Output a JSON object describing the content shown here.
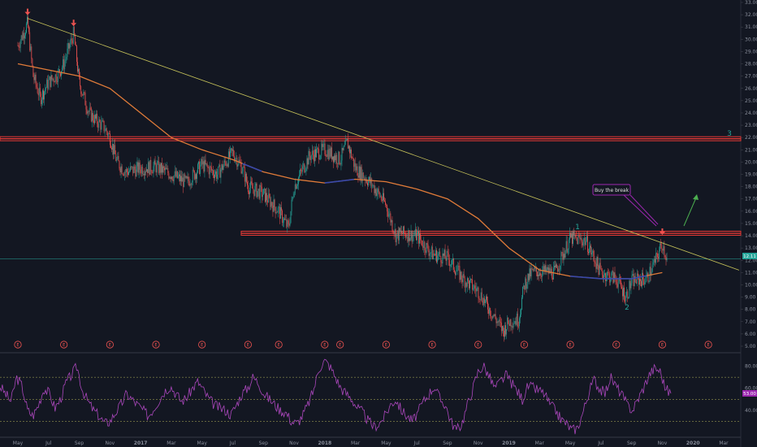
{
  "chart_data": [
    {
      "type": "candlestick",
      "title": "",
      "ylim": [
        5.0,
        33.0
      ],
      "y_ticks": [
        "33.00",
        "32.00",
        "31.00",
        "30.00",
        "29.00",
        "28.00",
        "27.00",
        "26.00",
        "25.00",
        "24.00",
        "23.00",
        "22.00",
        "21.00",
        "20.00",
        "19.00",
        "18.00",
        "17.00",
        "16.00",
        "15.00",
        "14.00",
        "13.00",
        "12.00",
        "11.00",
        "10.00",
        "9.00",
        "8.00",
        "7.00",
        "6.00",
        "5.00"
      ],
      "x_ticks": [
        "May",
        "Jul",
        "Sep",
        "Nov",
        "2017",
        "Mar",
        "May",
        "Jul",
        "Sep",
        "Nov",
        "2018",
        "Mar",
        "May",
        "Jul",
        "Sep",
        "Nov",
        "2019",
        "Mar",
        "May",
        "Jul",
        "Sep",
        "Nov",
        "2020",
        "Mar"
      ],
      "price_path": [
        {
          "date": "2016-05",
          "close": 29.5
        },
        {
          "date": "2016-05-20",
          "close": 31.3
        },
        {
          "date": "2016-06",
          "close": 27.0
        },
        {
          "date": "2016-06-15",
          "close": 25.2
        },
        {
          "date": "2016-07",
          "close": 26.5
        },
        {
          "date": "2016-07-20",
          "close": 27.2
        },
        {
          "date": "2016-08",
          "close": 28.0
        },
        {
          "date": "2016-08-20",
          "close": 30.5
        },
        {
          "date": "2016-09",
          "close": 26.5
        },
        {
          "date": "2016-09-20",
          "close": 24.0
        },
        {
          "date": "2016-10",
          "close": 23.5
        },
        {
          "date": "2016-10-20",
          "close": 22.8
        },
        {
          "date": "2016-11",
          "close": 22.0
        },
        {
          "date": "2016-11-15",
          "close": 20.0
        },
        {
          "date": "2016-12",
          "close": 19.2
        },
        {
          "date": "2017-01",
          "close": 19.5
        },
        {
          "date": "2017-02",
          "close": 19.6
        },
        {
          "date": "2017-03",
          "close": 19.0
        },
        {
          "date": "2017-04",
          "close": 18.3
        },
        {
          "date": "2017-05",
          "close": 19.8
        },
        {
          "date": "2017-06",
          "close": 19.0
        },
        {
          "date": "2017-07",
          "close": 20.8
        },
        {
          "date": "2017-07-20",
          "close": 19.5
        },
        {
          "date": "2017-08",
          "close": 18.0
        },
        {
          "date": "2017-09",
          "close": 17.4
        },
        {
          "date": "2017-10",
          "close": 16.0
        },
        {
          "date": "2017-10-20",
          "close": 14.6
        },
        {
          "date": "2017-11",
          "close": 18.0
        },
        {
          "date": "2017-12",
          "close": 20.5
        },
        {
          "date": "2018-01",
          "close": 21.0
        },
        {
          "date": "2018-02",
          "close": 20.2
        },
        {
          "date": "2018-02-15",
          "close": 21.6
        },
        {
          "date": "2018-03",
          "close": 19.5
        },
        {
          "date": "2018-04",
          "close": 18.3
        },
        {
          "date": "2018-05",
          "close": 16.5
        },
        {
          "date": "2018-05-20",
          "close": 14.0
        },
        {
          "date": "2018-06",
          "close": 14.2
        },
        {
          "date": "2018-07",
          "close": 14.0
        },
        {
          "date": "2018-08",
          "close": 12.5
        },
        {
          "date": "2018-09",
          "close": 12.2
        },
        {
          "date": "2018-10",
          "close": 10.5
        },
        {
          "date": "2018-11",
          "close": 9.5
        },
        {
          "date": "2018-12",
          "close": 7.5
        },
        {
          "date": "2018-12-20",
          "close": 6.2
        },
        {
          "date": "2019-01",
          "close": 7.0
        },
        {
          "date": "2019-01-20",
          "close": 7.2
        },
        {
          "date": "2019-02",
          "close": 10.0
        },
        {
          "date": "2019-02-15",
          "close": 11.0
        },
        {
          "date": "2019-03",
          "close": 11.1
        },
        {
          "date": "2019-04",
          "close": 11.0
        },
        {
          "date": "2019-05",
          "close": 13.8
        },
        {
          "date": "2019-06",
          "close": 13.6
        },
        {
          "date": "2019-07",
          "close": 11.0
        },
        {
          "date": "2019-08",
          "close": 10.5
        },
        {
          "date": "2019-08-20",
          "close": 9.0
        },
        {
          "date": "2019-09",
          "close": 10.3
        },
        {
          "date": "2019-10",
          "close": 10.5
        },
        {
          "date": "2019-10-20",
          "close": 12.2
        },
        {
          "date": "2019-11",
          "close": 13.4
        },
        {
          "date": "2019-11-10",
          "close": 12.1
        }
      ],
      "moving_average": [
        {
          "date": "2016-05",
          "value": 28.0
        },
        {
          "date": "2016-07",
          "value": 27.5
        },
        {
          "date": "2016-09",
          "value": 27.0
        },
        {
          "date": "2016-11",
          "value": 26.0
        },
        {
          "date": "2017-01",
          "value": 24.0
        },
        {
          "date": "2017-03",
          "value": 22.0
        },
        {
          "date": "2017-05",
          "value": 21.0
        },
        {
          "date": "2017-07",
          "value": 20.2
        },
        {
          "date": "2017-09",
          "value": 19.2
        },
        {
          "date": "2017-11",
          "value": 18.6
        },
        {
          "date": "2018-01",
          "value": 18.3
        },
        {
          "date": "2018-03",
          "value": 18.6
        },
        {
          "date": "2018-05",
          "value": 18.4
        },
        {
          "date": "2018-07",
          "value": 17.8
        },
        {
          "date": "2018-09",
          "value": 17.0
        },
        {
          "date": "2018-11",
          "value": 15.4
        },
        {
          "date": "2019-01",
          "value": 13.0
        },
        {
          "date": "2019-03",
          "value": 11.2
        },
        {
          "date": "2019-05",
          "value": 10.7
        },
        {
          "date": "2019-07",
          "value": 10.5
        },
        {
          "date": "2019-09",
          "value": 10.5
        },
        {
          "date": "2019-11",
          "value": 11.0
        }
      ],
      "horizontal_levels": [
        {
          "value": 21.9,
          "color": "#e53935",
          "style": "thick"
        },
        {
          "value": 14.2,
          "color": "#e53935",
          "style": "thick"
        },
        {
          "value": 12.1,
          "color": "#26a69a",
          "style": "thin"
        }
      ],
      "trendline": {
        "from": {
          "date": "2016-05-20",
          "value": 31.7
        },
        "to": {
          "date": "2020-04",
          "value": 11.2
        },
        "color": "#c8c45a"
      },
      "annotations": {
        "wave_labels": [
          "1",
          "2",
          "3"
        ],
        "callout": "Buy the break",
        "current_price_label": "12.11",
        "earnings_marker": "E"
      },
      "earnings_dates": [
        "2016-05",
        "2016-08",
        "2016-11",
        "2017-02",
        "2017-05",
        "2017-08",
        "2017-10",
        "2018-01",
        "2018-02",
        "2018-05",
        "2018-08",
        "2018-11",
        "2019-02",
        "2019-05",
        "2019-08",
        "2019-11",
        "2020-02"
      ],
      "arrows_down_at": [
        {
          "date": "2016-05-20",
          "value": 31.7
        },
        {
          "date": "2016-08-20",
          "value": 30.8
        },
        {
          "date": "2019-11",
          "value": 13.8
        }
      ]
    },
    {
      "type": "line",
      "title": "",
      "ylim": [
        20,
        90
      ],
      "y_ticks": [
        "80.00",
        "60.00",
        "40.00"
      ],
      "current_value_label": "53.00",
      "levels": [
        70,
        50,
        30
      ],
      "series": [
        {
          "values": [
            62,
            55,
            48,
            70,
            62,
            40,
            35,
            45,
            60,
            55,
            42,
            50,
            65,
            72,
            80,
            58,
            48,
            40,
            35,
            28,
            30,
            38,
            45,
            55,
            50,
            45,
            40,
            35,
            42,
            50,
            58,
            62,
            55,
            48,
            52,
            60,
            66,
            58,
            50,
            45,
            42,
            40,
            36,
            45,
            55,
            60,
            70,
            65,
            55,
            50,
            45,
            40,
            38,
            30,
            28,
            35,
            45,
            58,
            78,
            85,
            80,
            70,
            60,
            55,
            50,
            42,
            38,
            30,
            25,
            28,
            35,
            45,
            50,
            40,
            35,
            30,
            38,
            48,
            55,
            62,
            50,
            45,
            30,
            22,
            28,
            45,
            60,
            76,
            80,
            70,
            60,
            66,
            72,
            65,
            58,
            50,
            62,
            60,
            58,
            55,
            45,
            40,
            32,
            28,
            22,
            24,
            38,
            55,
            68,
            60,
            55,
            70,
            62,
            55,
            45,
            40,
            50,
            60,
            72,
            78,
            76,
            60,
            55
          ]
        }
      ]
    }
  ]
}
